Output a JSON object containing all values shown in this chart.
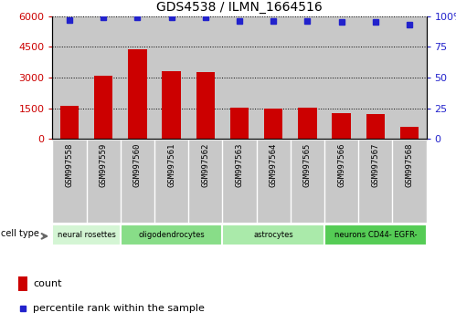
{
  "title": "GDS4538 / ILMN_1664516",
  "samples": [
    "GSM997558",
    "GSM997559",
    "GSM997560",
    "GSM997561",
    "GSM997562",
    "GSM997563",
    "GSM997564",
    "GSM997565",
    "GSM997566",
    "GSM997567",
    "GSM997568"
  ],
  "counts": [
    1620,
    3100,
    4400,
    3300,
    3280,
    1520,
    1480,
    1530,
    1250,
    1230,
    600
  ],
  "percentiles": [
    97,
    99,
    99,
    99,
    99,
    96,
    96,
    96,
    95,
    95,
    93
  ],
  "bar_color": "#cc0000",
  "dot_color": "#2222cc",
  "ylim_left": [
    0,
    6000
  ],
  "ylim_right": [
    0,
    100
  ],
  "yticks_left": [
    0,
    1500,
    3000,
    4500,
    6000
  ],
  "yticks_right": [
    0,
    25,
    50,
    75,
    100
  ],
  "col_bg_color": "#c8c8c8",
  "cell_types": [
    {
      "label": "neural rosettes",
      "start": 0,
      "end": 2,
      "color": "#d4f5d4"
    },
    {
      "label": "oligodendrocytes",
      "start": 2,
      "end": 5,
      "color": "#88dd88"
    },
    {
      "label": "astrocytes",
      "start": 5,
      "end": 8,
      "color": "#aaeaaa"
    },
    {
      "label": "neurons CD44- EGFR-",
      "start": 8,
      "end": 11,
      "color": "#55cc55"
    }
  ],
  "legend_count_label": "count",
  "legend_pct_label": "percentile rank within the sample",
  "cell_type_label": "cell type"
}
